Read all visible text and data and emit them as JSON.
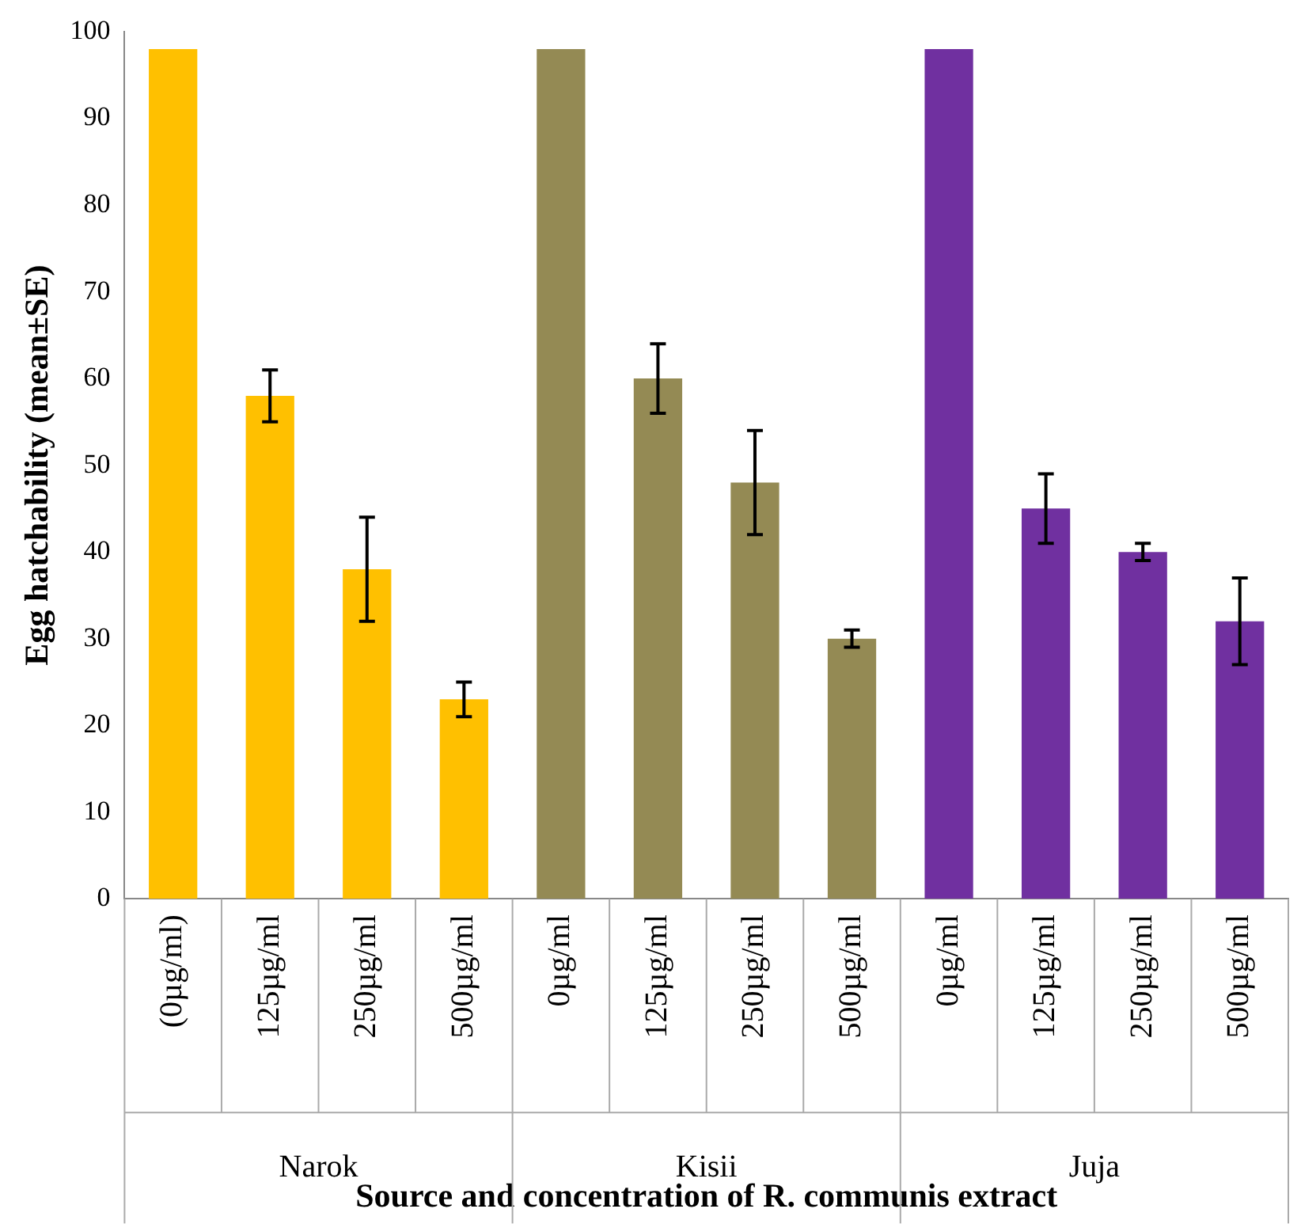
{
  "chart_data": {
    "type": "bar",
    "stacked": true,
    "xlabel": "Source and concentration of R. communis extract",
    "ylabel": "Egg hatchability (mean±SE)",
    "categories": [
      "(0µg/ml)",
      "125µg/ml",
      "250µg/ml",
      "500µg/ml",
      "0µg/ml",
      "125µg/ml",
      "250µg/ml",
      "500µg/ml",
      "0µg/ml",
      "125µg/ml",
      "250µg/ml",
      "500µg/ml"
    ],
    "series": [
      {
        "color": "#ffc000",
        "values": [
          98,
          58,
          38,
          23,
          null,
          null,
          null,
          null,
          null,
          null,
          null,
          null
        ],
        "errors": [
          null,
          3,
          6,
          2,
          null,
          null,
          null,
          null,
          null,
          null,
          null,
          null
        ]
      },
      {
        "color": "#948a54",
        "values": [
          null,
          null,
          null,
          null,
          98,
          60,
          48,
          30,
          null,
          null,
          null,
          null
        ],
        "errors": [
          null,
          null,
          null,
          null,
          null,
          4,
          6,
          1,
          null,
          null,
          null,
          null
        ]
      },
      {
        "color": "#7030a0",
        "values": [
          null,
          null,
          null,
          null,
          null,
          null,
          null,
          null,
          98,
          45,
          40,
          32
        ],
        "errors": [
          null,
          null,
          null,
          null,
          null,
          null,
          null,
          null,
          null,
          4,
          1,
          5
        ]
      }
    ],
    "ylim": [
      0,
      100
    ],
    "yticks": [
      0,
      10,
      20,
      30,
      40,
      50,
      60,
      70,
      80,
      90,
      100
    ],
    "annotations": [
      "Narok",
      "Kisii",
      "Juja"
    ],
    "grid": false,
    "legend": false
  }
}
